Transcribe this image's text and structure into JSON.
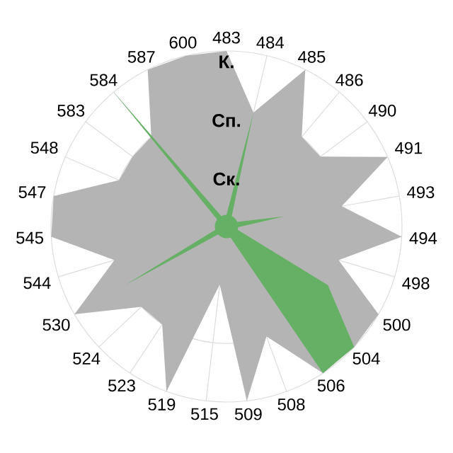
{
  "chart_data": {
    "type": "radar",
    "categories": [
      "483",
      "484",
      "485",
      "486",
      "490",
      "491",
      "493",
      "494",
      "498",
      "500",
      "504",
      "506",
      "508",
      "509",
      "515",
      "519",
      "523",
      "524",
      "530",
      "544",
      "545",
      "547",
      "548",
      "583",
      "584",
      "587",
      "600"
    ],
    "ylim": [
      0,
      3
    ],
    "yticks": [
      {
        "value": 1,
        "label": "Ск."
      },
      {
        "value": 2,
        "label": "Сп."
      },
      {
        "value": 3,
        "label": "К."
      }
    ],
    "grid": true,
    "series": [
      {
        "color": "#b4b4b4",
        "values": [
          3,
          2,
          3,
          2,
          2,
          3,
          2,
          3,
          2,
          3,
          3,
          3,
          2,
          3,
          1,
          3,
          2,
          2,
          3,
          2,
          3,
          3,
          2,
          2,
          2,
          3,
          3
        ]
      },
      {
        "color": "#66b066",
        "values": [
          0.2,
          2,
          0.2,
          0.2,
          0.2,
          0.2,
          1,
          0.2,
          0.2,
          2,
          3,
          3,
          0.2,
          0.2,
          0.2,
          0.2,
          0.2,
          0.2,
          2,
          0.2,
          0.2,
          0.2,
          0.2,
          0.2,
          3,
          0.2,
          0.2
        ]
      }
    ]
  }
}
